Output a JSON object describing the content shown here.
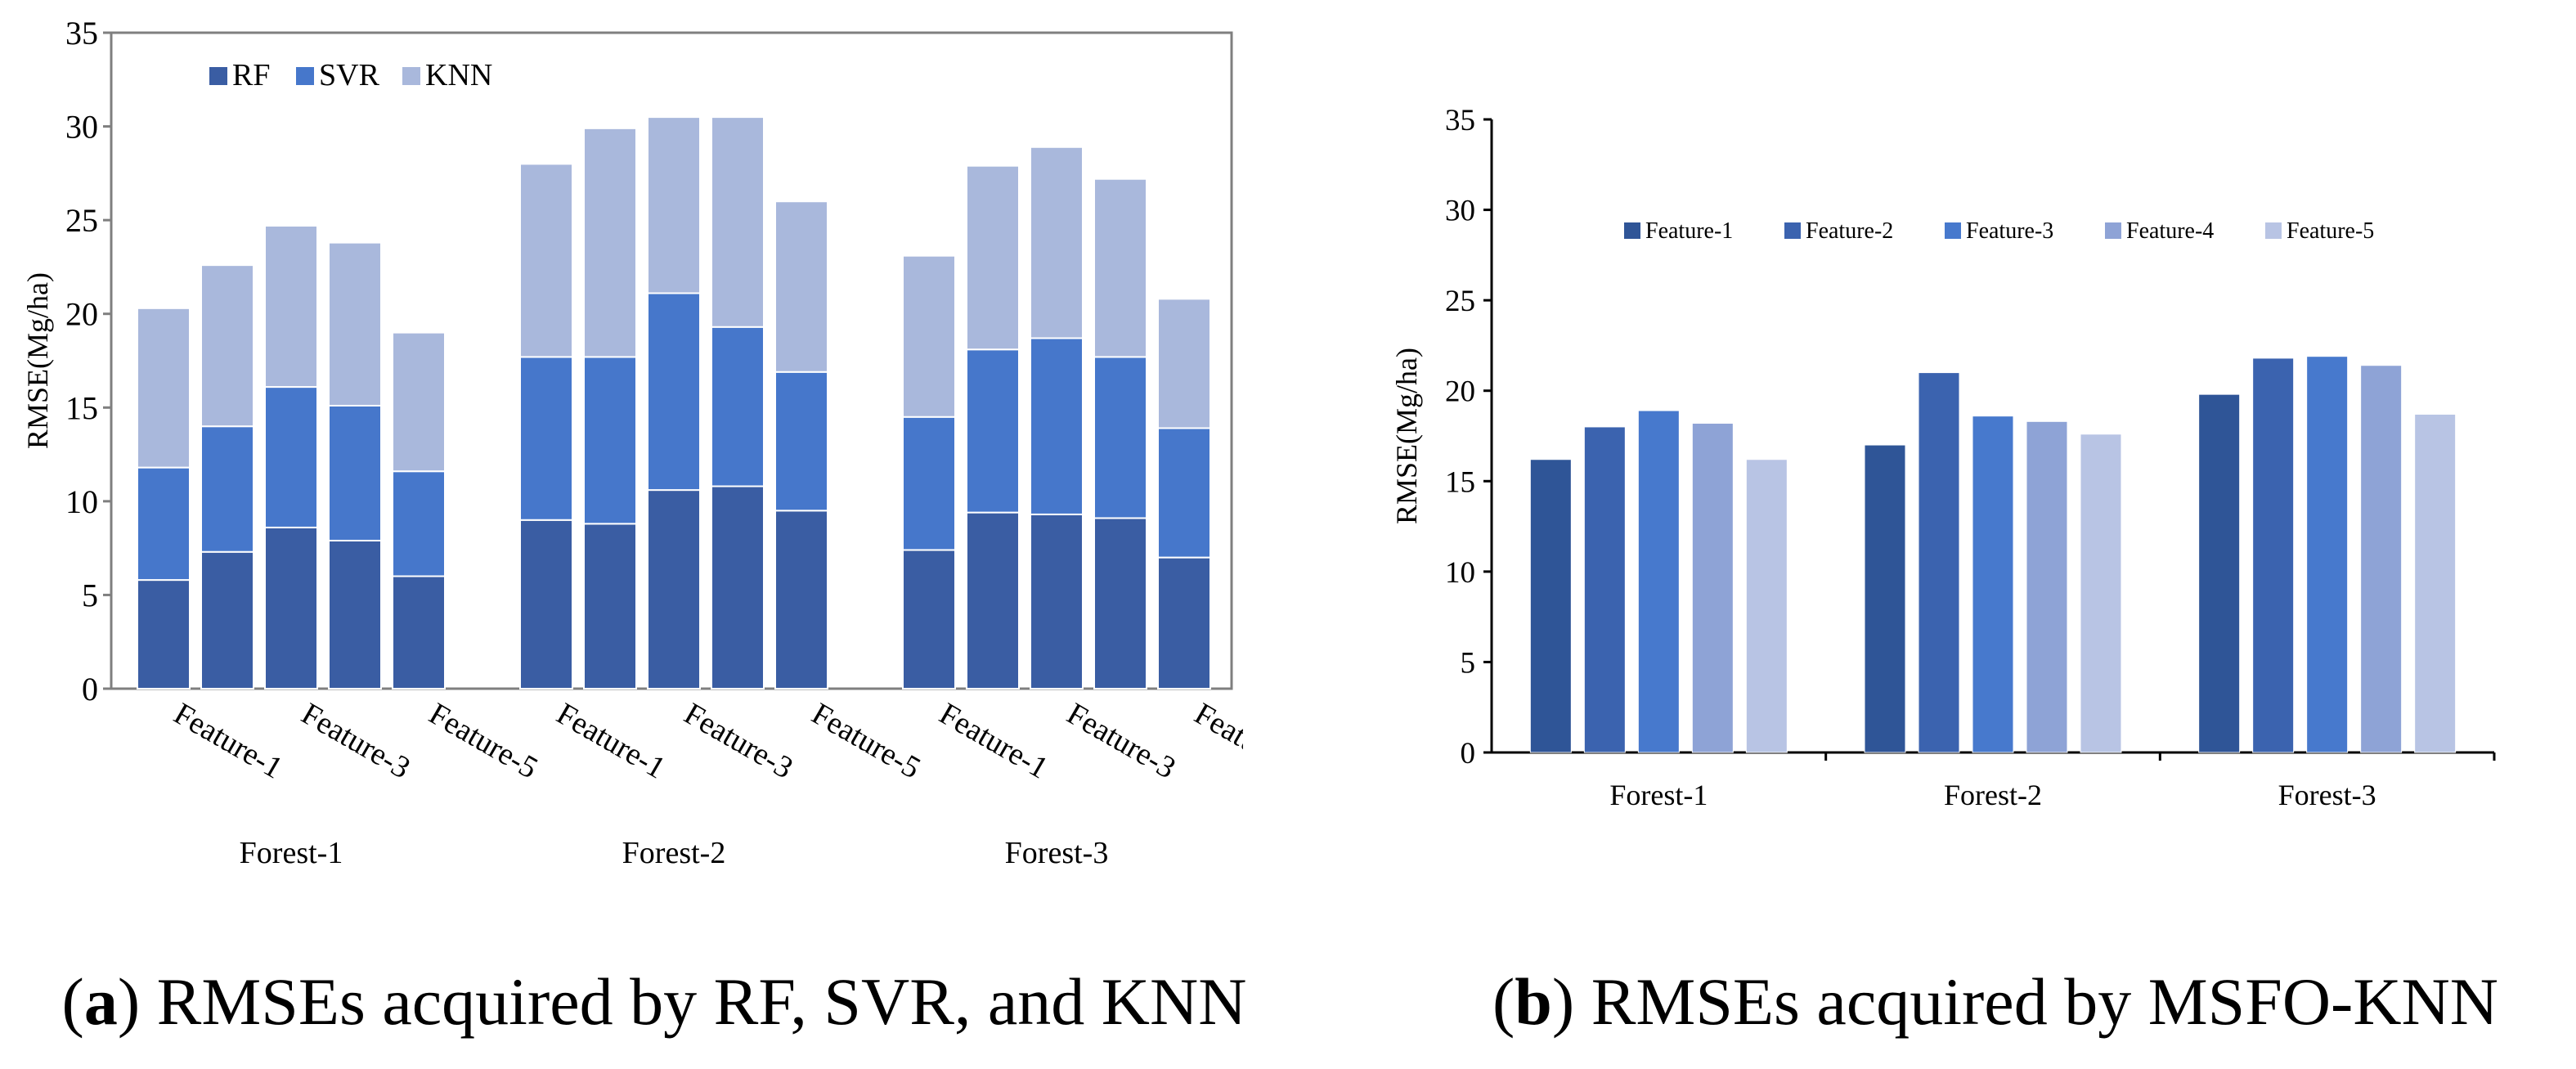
{
  "chart_data": [
    {
      "id": "a",
      "type": "bar",
      "stacked": true,
      "ylabel": "RMSE(Mg/ha)",
      "ylim": [
        0,
        35
      ],
      "yticks": [
        0,
        5,
        10,
        15,
        20,
        25,
        30,
        35
      ],
      "grid": false,
      "legend_position": "top-left",
      "groups": [
        "Forest-1",
        "Forest-2",
        "Forest-3"
      ],
      "bar_labels_shown": [
        "Feature-1",
        "Feature-3",
        "Feature-5"
      ],
      "categories": [
        "Feature-1",
        "Feature-2",
        "Feature-3",
        "Feature-4",
        "Feature-5"
      ],
      "series": [
        {
          "name": "RF",
          "color": "#3A5DA3",
          "values": [
            [
              5.8,
              7.3,
              8.6,
              7.9,
              6.0
            ],
            [
              9.0,
              8.8,
              10.6,
              10.8,
              9.5
            ],
            [
              7.4,
              9.4,
              9.3,
              9.1,
              7.0
            ]
          ]
        },
        {
          "name": "SVR",
          "color": "#4677CB",
          "values": [
            [
              6.0,
              6.7,
              7.5,
              7.2,
              5.6
            ],
            [
              8.7,
              8.9,
              10.5,
              8.5,
              7.4
            ],
            [
              7.1,
              8.7,
              9.4,
              8.6,
              6.9
            ]
          ]
        },
        {
          "name": "KNN",
          "color": "#A9B8DC",
          "values": [
            [
              8.5,
              8.6,
              8.6,
              8.7,
              7.4
            ],
            [
              10.3,
              12.2,
              9.4,
              11.2,
              9.1
            ],
            [
              8.6,
              9.8,
              10.2,
              9.5,
              6.9
            ]
          ]
        }
      ]
    },
    {
      "id": "b",
      "type": "bar",
      "ylabel": "RMSE(Mg/ha)",
      "ylim": [
        0,
        35
      ],
      "yticks": [
        0,
        5,
        10,
        15,
        20,
        25,
        30,
        35
      ],
      "grid": false,
      "legend_position": "top",
      "categories": [
        "Forest-1",
        "Forest-2",
        "Forest-3"
      ],
      "series": [
        {
          "name": "Feature-1",
          "color": "#2F5597",
          "values": [
            16.2,
            17.0,
            19.8
          ]
        },
        {
          "name": "Feature-2",
          "color": "#3B63AF",
          "values": [
            18.0,
            21.0,
            21.8
          ]
        },
        {
          "name": "Feature-3",
          "color": "#4779CD",
          "values": [
            18.9,
            18.6,
            21.9
          ]
        },
        {
          "name": "Feature-4",
          "color": "#8EA3D6",
          "values": [
            18.2,
            18.3,
            21.4
          ]
        },
        {
          "name": "Feature-5",
          "color": "#B8C4E4",
          "values": [
            16.2,
            17.6,
            18.7
          ]
        }
      ]
    }
  ],
  "captions": {
    "a_letter": "a",
    "a_text": " RMSEs acquired by RF, SVR, and KNN",
    "b_letter": "b",
    "b_text": " RMSEs acquired by MSFO-KNN"
  }
}
